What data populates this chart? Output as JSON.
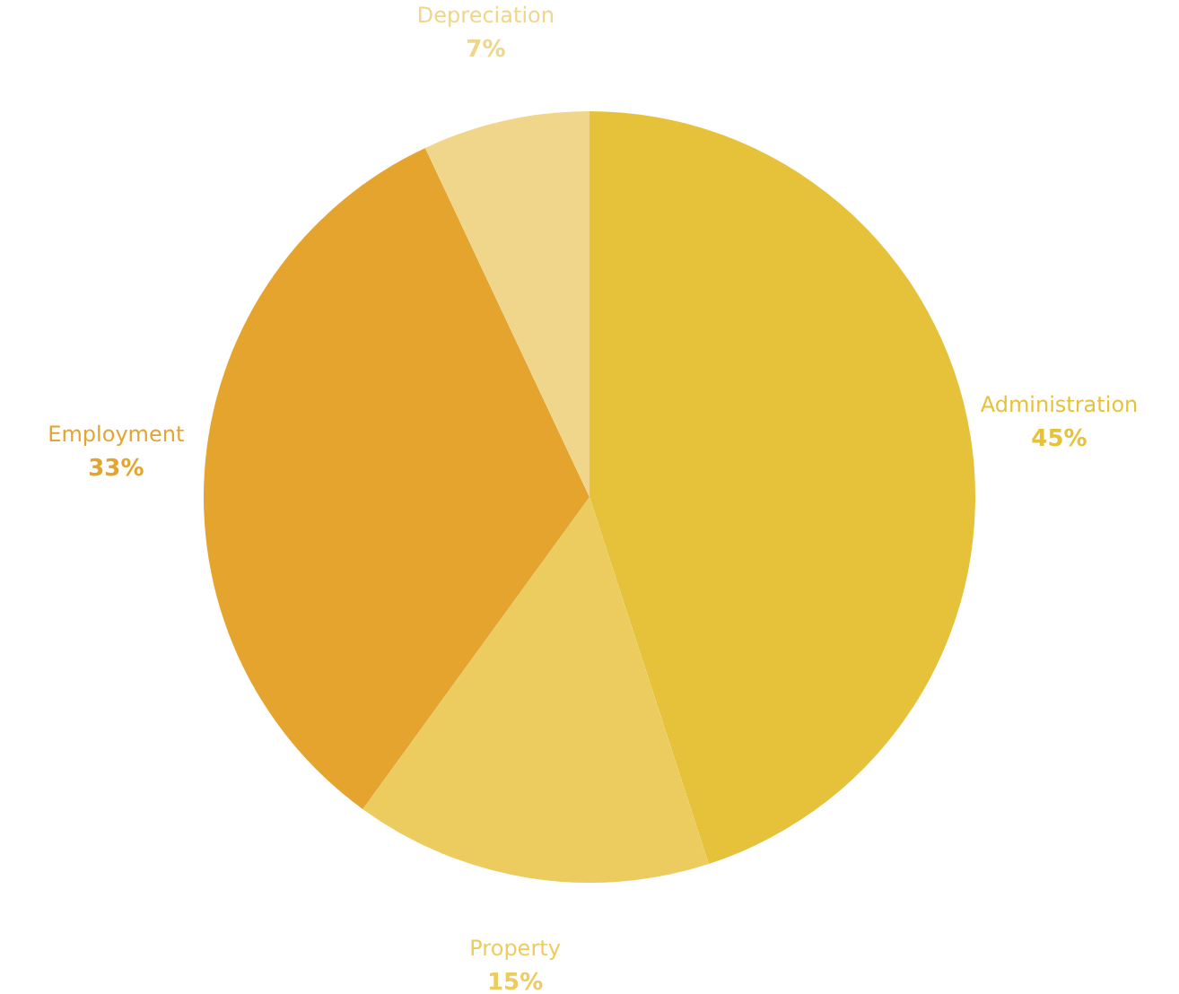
{
  "chart_data": {
    "type": "pie",
    "categories": [
      "Administration",
      "Property",
      "Employment",
      "Depreciation"
    ],
    "values": [
      45,
      15,
      33,
      7
    ],
    "value_labels": [
      "45%",
      "15%",
      "33%",
      "7%"
    ],
    "colors": [
      "#e5c23a",
      "#eccb5f",
      "#e4a42e",
      "#efd68a"
    ]
  }
}
